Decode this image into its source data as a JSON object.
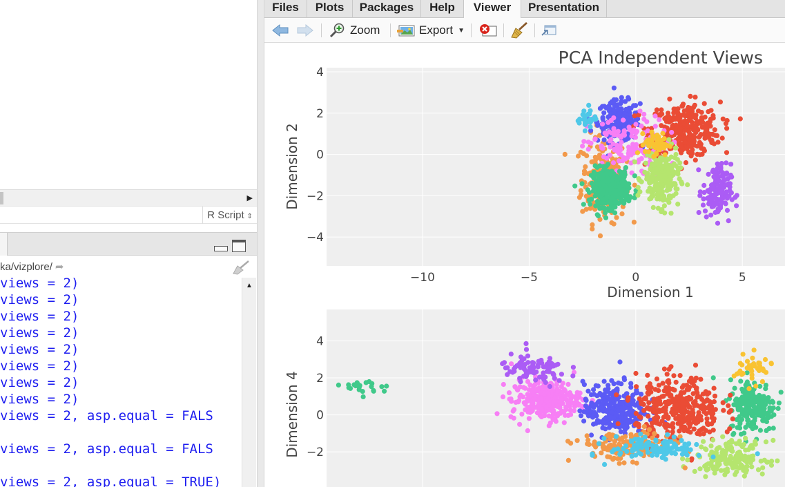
{
  "editor": {
    "filetype": "R Script"
  },
  "console": {
    "path": "ka/vizplore/",
    "lines": [
      "views = 2)",
      "views = 2)",
      "views = 2)",
      "views = 2)",
      "views = 2)",
      "views = 2)",
      "views = 2)",
      "views = 2)",
      "views = 2, asp.equal = FALS",
      "",
      "views = 2, asp.equal = FALS",
      "",
      "views = 2, asp.equal = TRUE)"
    ]
  },
  "viewer": {
    "tabs": [
      {
        "label": "Files",
        "active": false
      },
      {
        "label": "Plots",
        "active": false
      },
      {
        "label": "Packages",
        "active": false
      },
      {
        "label": "Help",
        "active": false
      },
      {
        "label": "Viewer",
        "active": true
      },
      {
        "label": "Presentation",
        "active": false
      }
    ],
    "toolbar": {
      "zoom_label": "Zoom",
      "export_label": "Export"
    }
  },
  "colors": {
    "clusters": [
      "#f2994a",
      "#5b5bf5",
      "#ea4c35",
      "#f77ff5",
      "#40c98a",
      "#b5e56e",
      "#ab5cf5",
      "#f9c332",
      "#4fc8e8"
    ],
    "plot_bg": "#efefef",
    "grid": "#ffffff",
    "console_text": "#1d1df0"
  },
  "chart_data": [
    {
      "type": "scatter",
      "title": "PCA Independent Views",
      "xlabel": "Dimension 1",
      "ylabel": "Dimension 2",
      "xlim": [
        -14.5,
        7
      ],
      "ylim": [
        -5.4,
        4.2
      ],
      "xticks": [
        -10,
        -5,
        0,
        5
      ],
      "yticks": [
        -4,
        -2,
        0,
        2,
        4
      ],
      "clusters": [
        {
          "color_index": 0,
          "center": [
            -1.5,
            -1.2
          ],
          "spread": [
            0.95,
            1.9
          ],
          "n": 230
        },
        {
          "color_index": 1,
          "center": [
            -0.8,
            1.6
          ],
          "spread": [
            0.9,
            0.9
          ],
          "n": 190
        },
        {
          "color_index": 2,
          "center": [
            2.3,
            1.2
          ],
          "spread": [
            1.5,
            1.2
          ],
          "n": 320
        },
        {
          "color_index": 3,
          "center": [
            -0.4,
            0.3
          ],
          "spread": [
            1.7,
            1.4
          ],
          "n": 150
        },
        {
          "color_index": 4,
          "center": [
            -1.2,
            -1.6
          ],
          "spread": [
            0.8,
            0.85
          ],
          "n": 330
        },
        {
          "color_index": 5,
          "center": [
            1.2,
            -1.2
          ],
          "spread": [
            0.75,
            1.2
          ],
          "n": 230
        },
        {
          "color_index": 6,
          "center": [
            3.8,
            -1.8
          ],
          "spread": [
            0.6,
            1.2
          ],
          "n": 150
        },
        {
          "color_index": 7,
          "center": [
            1.0,
            0.5
          ],
          "spread": [
            0.5,
            0.5
          ],
          "n": 50
        },
        {
          "color_index": 8,
          "center": [
            -2.3,
            1.8
          ],
          "spread": [
            0.4,
            0.5
          ],
          "n": 30
        }
      ]
    },
    {
      "type": "scatter",
      "xlabel": "",
      "ylabel": "Dimension 4",
      "xlim": [
        -14.5,
        7
      ],
      "ylim": [
        -3.9,
        5.7
      ],
      "yticks": [
        -2,
        0,
        2,
        4
      ],
      "clusters": [
        {
          "color_index": 4,
          "center": [
            -12.5,
            1.5
          ],
          "spread": [
            1.0,
            0.4
          ],
          "n": 22
        },
        {
          "color_index": 4,
          "center": [
            5.5,
            0.5
          ],
          "spread": [
            1.0,
            1.3
          ],
          "n": 200
        },
        {
          "color_index": 3,
          "center": [
            -4.2,
            0.8
          ],
          "spread": [
            1.5,
            1.0
          ],
          "n": 280
        },
        {
          "color_index": 1,
          "center": [
            -1.0,
            0.3
          ],
          "spread": [
            1.3,
            1.3
          ],
          "n": 300
        },
        {
          "color_index": 2,
          "center": [
            2.0,
            0.3
          ],
          "spread": [
            1.8,
            1.6
          ],
          "n": 360
        },
        {
          "color_index": 6,
          "center": [
            -4.8,
            2.4
          ],
          "spread": [
            1.5,
            0.8
          ],
          "n": 90
        },
        {
          "color_index": 5,
          "center": [
            4.5,
            -2.3
          ],
          "spread": [
            1.5,
            0.8
          ],
          "n": 180
        },
        {
          "color_index": 0,
          "center": [
            -0.5,
            -1.7
          ],
          "spread": [
            2.0,
            0.7
          ],
          "n": 150
        },
        {
          "color_index": 8,
          "center": [
            1.0,
            -1.8
          ],
          "spread": [
            2.0,
            0.6
          ],
          "n": 110
        },
        {
          "color_index": 7,
          "center": [
            5.5,
            2.5
          ],
          "spread": [
            0.8,
            0.7
          ],
          "n": 40
        }
      ]
    }
  ]
}
